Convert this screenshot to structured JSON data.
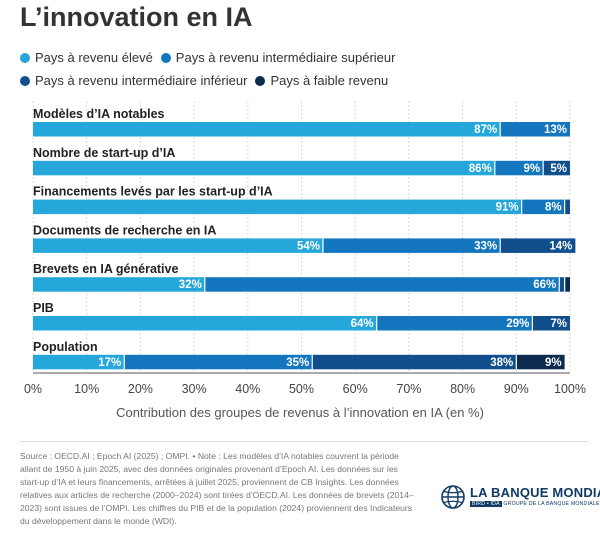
{
  "title": "L’innovation en IA",
  "legend": [
    {
      "label": "Pays à revenu élevé",
      "color": "#25a7db"
    },
    {
      "label": "Pays à revenu intermédiaire supérieur",
      "color": "#1476bf"
    },
    {
      "label": "Pays à revenu intermédiaire inférieur",
      "color": "#104f8c"
    },
    {
      "label": "Pays à faible revenu",
      "color": "#0d2b4e"
    }
  ],
  "chart_data": {
    "type": "bar",
    "orientation": "horizontal",
    "stacked": true,
    "categories": [
      "Modèles d’IA notables",
      "Nombre de start-up d’IA",
      "Financements levés par les start-up d’IA",
      "Documents de recherche en IA",
      "Brevets en IA générative",
      "PIB",
      "Population"
    ],
    "series": [
      {
        "name": "Pays à revenu élevé",
        "color": "#25a7db",
        "values": [
          87,
          86,
          91,
          54,
          32,
          64,
          17
        ]
      },
      {
        "name": "Pays à revenu intermédiaire supérieur",
        "color": "#1476bf",
        "values": [
          13,
          9,
          8,
          33,
          66,
          29,
          35
        ]
      },
      {
        "name": "Pays à revenu intermédiaire inférieur",
        "color": "#104f8c",
        "values": [
          0,
          5,
          1,
          14,
          1,
          7,
          38
        ]
      },
      {
        "name": "Pays à faible revenu",
        "color": "#0d2b4e",
        "values": [
          0,
          0,
          0,
          0,
          1,
          0,
          9
        ]
      }
    ],
    "xlim": [
      0,
      100
    ],
    "xticks": [
      "0%",
      "10%",
      "20%",
      "30%",
      "40%",
      "50%",
      "60%",
      "70%",
      "80%",
      "90%",
      "100%"
    ],
    "xlabel": "Contribution des groupes de revenus à l’innovation en IA (en %)",
    "grid": true,
    "legend_position": "top"
  },
  "source": "Source : OECD.AI ; Epoch AI (2025) ; OMPI. • Note : Les modèles d’IA notables couvrent la période allant de 1950 à juin 2025, avec des données originales provenant d’Epoch AI. Les données sur les start-up d’IA et leurs financements, arrêtées à juillet 2025, proviennent de CB Insights. Les données relatives aux articles de recherche (2000–2024) sont tirées d’OECD.AI. Les données de brevets (2014–2023) sont issues de l’OMPI. Les chiffres du PIB et de la population (2024) proviennent des Indicateurs du développement dans le monde (WDI).",
  "logo": {
    "name": "LA BANQUE MONDIALE",
    "sub_badge": "BIRD • IDA",
    "sub_text": "GROUPE DE LA BANQUE MONDIALE"
  }
}
